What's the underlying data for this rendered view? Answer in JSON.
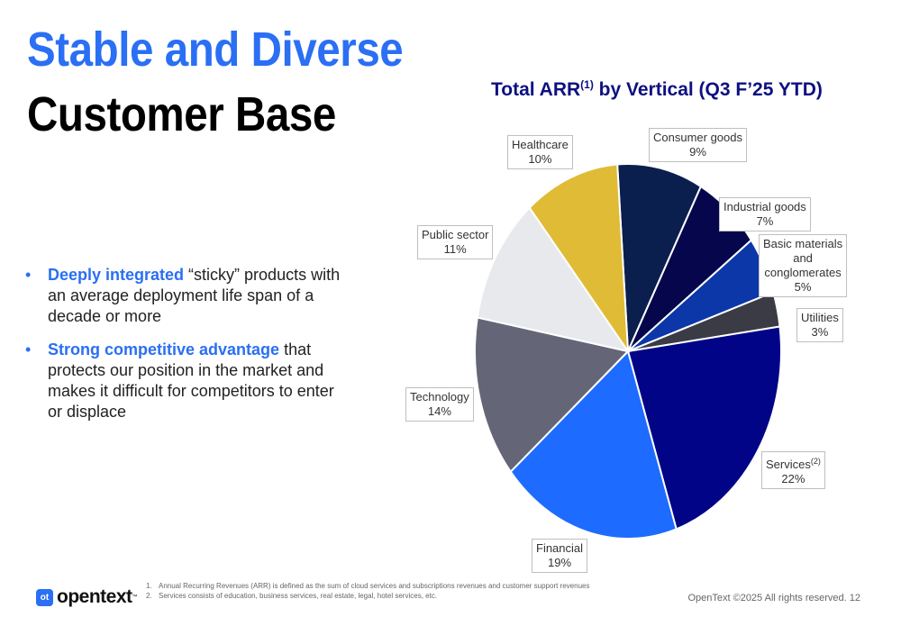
{
  "slide": {
    "title_line1": "Stable and Diverse",
    "title_line2": "Customer Base",
    "bullets": [
      {
        "highlight": "Deeply integrated",
        "text": " “sticky” products with an average deployment life span of a decade or more"
      },
      {
        "highlight": "Strong competitive advantage",
        "text": " that protects our position in the market and makes it difficult for competitors to enter or displace"
      }
    ],
    "bullet_symbol": "•"
  },
  "chart_title": {
    "main": "Total ARR",
    "sup": "(1)",
    "rest": " by Vertical (Q3 F’25 YTD)"
  },
  "chart_data": {
    "type": "pie",
    "title": "Total ARR(1) by Vertical (Q3 F’25 YTD)",
    "slices": [
      {
        "label": "Consumer goods",
        "value": 9,
        "display": "9%",
        "color": "#0b1f4e"
      },
      {
        "label": "Industrial goods",
        "value": 7,
        "display": "7%",
        "color": "#06064d"
      },
      {
        "label": "Basic materials and conglomerates",
        "label_lines": [
          "Basic materials",
          "and",
          "conglomerates"
        ],
        "value": 5,
        "display": "5%",
        "color": "#0b37a8"
      },
      {
        "label": "Utilities",
        "value": 3,
        "display": "3%",
        "color": "#3b3b45"
      },
      {
        "label": "Services",
        "label_sup": "(2)",
        "value": 22,
        "display": "22%",
        "color": "#010487"
      },
      {
        "label": "Financial",
        "value": 19,
        "display": "19%",
        "color": "#1d6bff"
      },
      {
        "label": "Technology",
        "value": 14,
        "display": "14%",
        "color": "#646678"
      },
      {
        "label": "Public sector",
        "value": 11,
        "display": "11%",
        "color": "#e8e9ed"
      },
      {
        "label": "Healthcare",
        "value": 10,
        "display": "10%",
        "color": "#e0bb36"
      }
    ],
    "legend": "callouts"
  },
  "footnotes": [
    {
      "num": "1.",
      "text": "Annual Recurring Revenues (ARR) is defined as the sum of cloud services and subscriptions revenues and customer support revenues"
    },
    {
      "num": "2.",
      "text": "Services consists of education, business services, real estate, legal, hotel services, etc."
    }
  ],
  "footer": {
    "logo_mark": "ot",
    "logo_text": "opentext",
    "logo_tm": "™",
    "copyright": "OpenText ©2025 All rights reserved. 12"
  }
}
